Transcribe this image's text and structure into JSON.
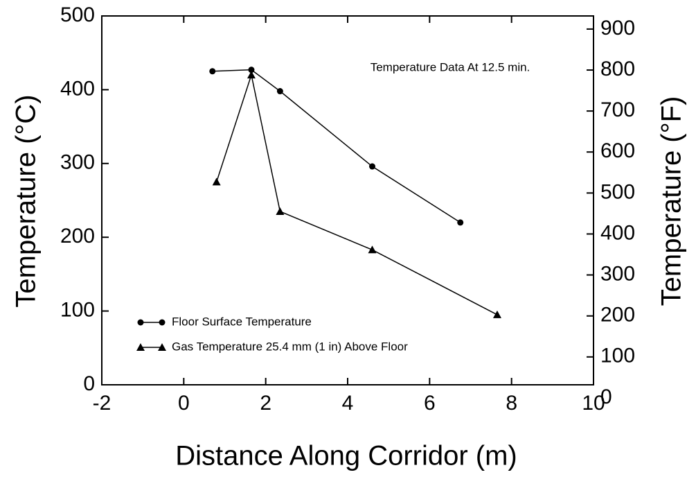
{
  "chart_data": {
    "type": "line",
    "annotation": "Temperature Data At 12.5 min.",
    "x_label": "Distance Along Corridor (m)",
    "y_label": "Temperature (°C)",
    "y2_label": "Temperature (°F)",
    "xlim": [
      -2,
      10
    ],
    "xticks": [
      -2,
      0,
      2,
      4,
      6,
      8,
      10
    ],
    "ylim": [
      0,
      500
    ],
    "yticks": [
      0,
      100,
      200,
      300,
      400,
      500
    ],
    "y2lim": [
      32,
      932
    ],
    "y2ticks": [
      0,
      100,
      200,
      300,
      400,
      500,
      600,
      700,
      800,
      900
    ],
    "series": [
      {
        "name": "Floor Surface Temperature",
        "marker": "circle",
        "color": "#000000",
        "x": [
          0.7,
          1.65,
          2.35,
          4.6,
          6.75
        ],
        "values": [
          425,
          427,
          398,
          296,
          220
        ]
      },
      {
        "name": "Gas Temperature 25.4 mm (1 in) Above Floor",
        "marker": "triangle",
        "color": "#000000",
        "x": [
          0.8,
          1.65,
          2.35,
          4.6,
          7.65
        ],
        "values": [
          275,
          420,
          235,
          183,
          95
        ]
      }
    ]
  }
}
